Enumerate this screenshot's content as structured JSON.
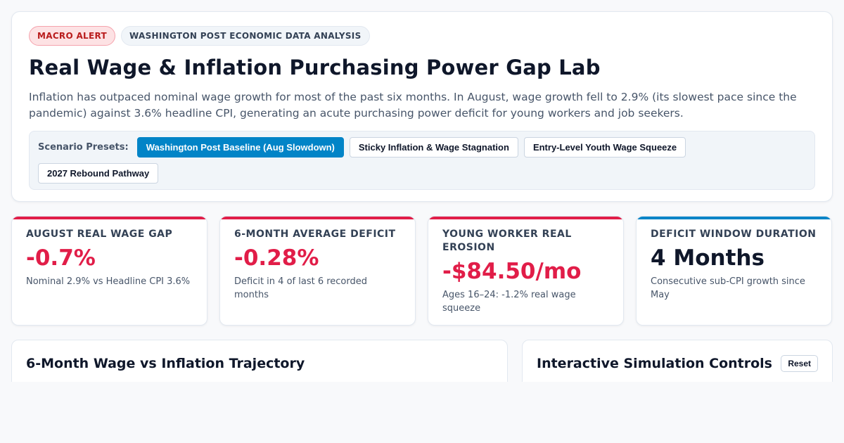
{
  "header": {
    "alert_badge": "MACRO ALERT",
    "source_badge": "WASHINGTON POST ECONOMIC DATA ANALYSIS",
    "title": "Real Wage & Inflation Purchasing Power Gap Lab",
    "description": "Inflation has outpaced nominal wage growth for most of the past six months. In August, wage growth fell to 2.9% (its slowest pace since the pandemic) against 3.6% headline CPI, generating an acute purchasing power deficit for young workers and job seekers."
  },
  "presets": {
    "label": "Scenario Presets:",
    "items": [
      {
        "label": "Washington Post Baseline (Aug Slowdown)",
        "active": true
      },
      {
        "label": "Sticky Inflation & Wage Stagnation",
        "active": false
      },
      {
        "label": "Entry-Level Youth Wage Squeeze",
        "active": false
      },
      {
        "label": "2027 Rebound Pathway",
        "active": false
      }
    ]
  },
  "kpis": [
    {
      "label": "AUGUST REAL WAGE GAP",
      "value": "-0.7%",
      "sub": "Nominal 2.9% vs Headline CPI 3.6%",
      "accent": "#e11d48"
    },
    {
      "label": "6-MONTH AVERAGE DEFICIT",
      "value": "-0.28%",
      "sub": "Deficit in 4 of last 6 recorded months",
      "accent": "#e11d48"
    },
    {
      "label": "YOUNG WORKER REAL EROSION",
      "value": "-$84.50/mo",
      "sub": "Ages 16–24: -1.2% real wage squeeze",
      "accent": "#e11d48"
    },
    {
      "label": "DEFICIT WINDOW DURATION",
      "value": "4 Months",
      "sub": "Consecutive sub-CPI growth since May",
      "accent": "#0284c7"
    }
  ],
  "panels": {
    "trajectory_title": "6-Month Wage vs Inflation Trajectory",
    "controls_title": "Interactive Simulation Controls",
    "reset_label": "Reset"
  },
  "colors": {
    "alert_red": "#e11d48",
    "primary_blue": "#0284c7",
    "text_dark": "#0f172a"
  }
}
